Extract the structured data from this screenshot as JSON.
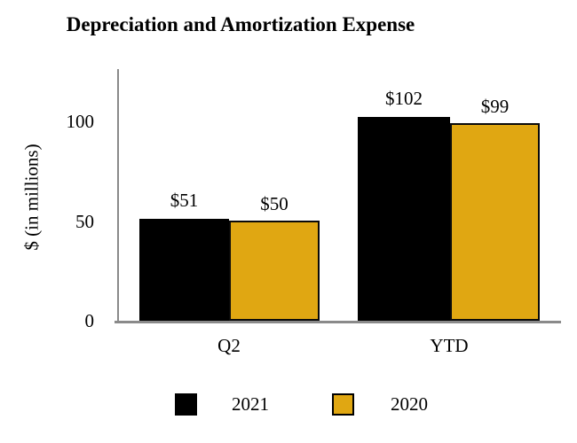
{
  "chart_data": {
    "type": "bar",
    "title": "Depreciation and Amortization Expense",
    "categories": [
      "Q2",
      "YTD"
    ],
    "series": [
      {
        "name": "2021",
        "color": "#000000",
        "values": [
          51,
          102
        ],
        "labels": [
          "$51",
          "$102"
        ]
      },
      {
        "name": "2020",
        "color": "#E0A712",
        "values": [
          50,
          99
        ],
        "labels": [
          "$50",
          "$99"
        ]
      }
    ],
    "ylabel": "$ (in millions)",
    "yticks": [
      "0",
      "50",
      "100"
    ],
    "ylim": [
      0,
      125
    ],
    "grid": false,
    "legend_position": "bottom",
    "axis_color": "#8A8A8A",
    "value_prefix": "$"
  }
}
